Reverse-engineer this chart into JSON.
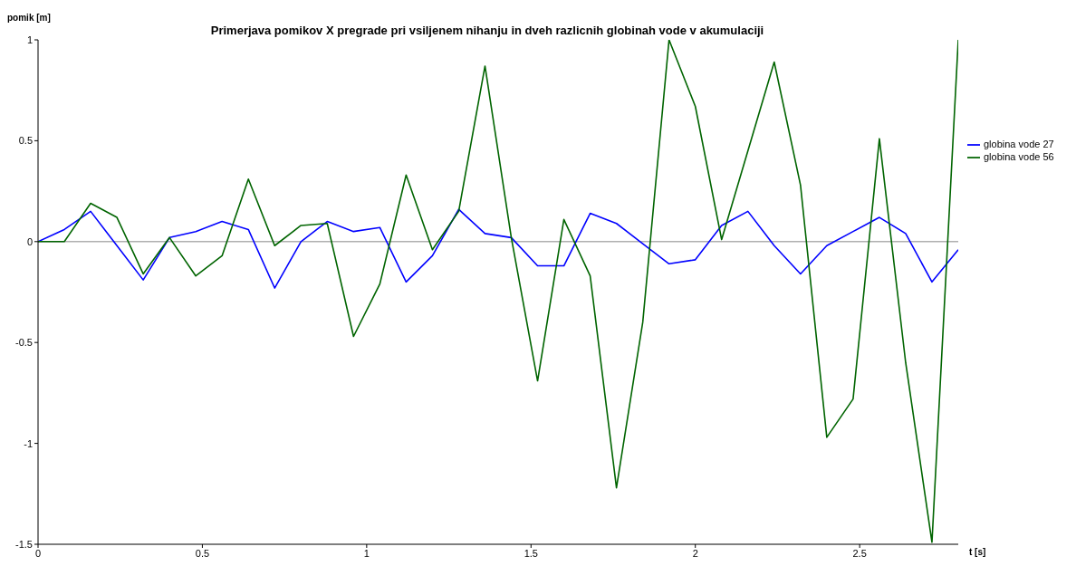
{
  "chart_data": {
    "type": "line",
    "title": "Primerjava pomikov X pregrade pri vsiljenem nihanju in dveh razlicnih globinah vode v akumulaciji",
    "xlabel": "t [s]",
    "ylabel": "pomik [m]",
    "x": [
      0,
      0.08,
      0.16,
      0.24,
      0.32,
      0.4,
      0.48,
      0.56,
      0.64,
      0.72,
      0.8,
      0.88,
      0.96,
      1.04,
      1.12,
      1.2,
      1.28,
      1.36,
      1.44,
      1.52,
      1.6,
      1.68,
      1.76,
      1.84,
      1.92,
      2.0,
      2.08,
      2.16,
      2.24,
      2.32,
      2.4,
      2.48,
      2.56,
      2.64,
      2.72,
      2.8
    ],
    "series": [
      {
        "name": "globina vode 27",
        "color": "#0000ff",
        "values": [
          0,
          0.06,
          0.15,
          -0.02,
          -0.19,
          0.02,
          0.05,
          0.1,
          0.06,
          -0.23,
          0,
          0.1,
          0.05,
          0.07,
          -0.2,
          -0.07,
          0.16,
          0.04,
          0.02,
          -0.12,
          -0.12,
          0.14,
          0.09,
          -0.01,
          -0.11,
          -0.09,
          0.08,
          0.15,
          -0.02,
          -0.16,
          -0.02,
          0.05,
          0.12,
          0.04,
          -0.2,
          -0.04
        ]
      },
      {
        "name": "globina vode 56",
        "color": "#006400",
        "values": [
          0,
          0,
          0.19,
          0.12,
          -0.16,
          0.02,
          -0.17,
          -0.07,
          0.31,
          -0.02,
          0.08,
          0.09,
          -0.47,
          -0.21,
          0.33,
          -0.04,
          0.15,
          0.87,
          0.02,
          -0.69,
          0.11,
          -0.17,
          -1.22,
          -0.4,
          1.0,
          0.67,
          0.01,
          0.45,
          0.89,
          0.28,
          -0.97,
          -0.78,
          0.51,
          -0.6,
          -1.49,
          1.0
        ]
      }
    ],
    "xlim": [
      0,
      2.8
    ],
    "xticks": [
      0,
      0.5,
      1,
      1.5,
      2,
      2.5
    ],
    "ylim": [
      -1.5,
      1
    ],
    "yticks": [
      -1.5,
      -1,
      -0.5,
      0,
      0.5,
      1
    ],
    "ref_lines": [
      {
        "axis": "y",
        "value": 0,
        "color": "#b0b0b0"
      }
    ],
    "grid": false,
    "legend": "right",
    "marker": "none",
    "line_style": "solid"
  }
}
